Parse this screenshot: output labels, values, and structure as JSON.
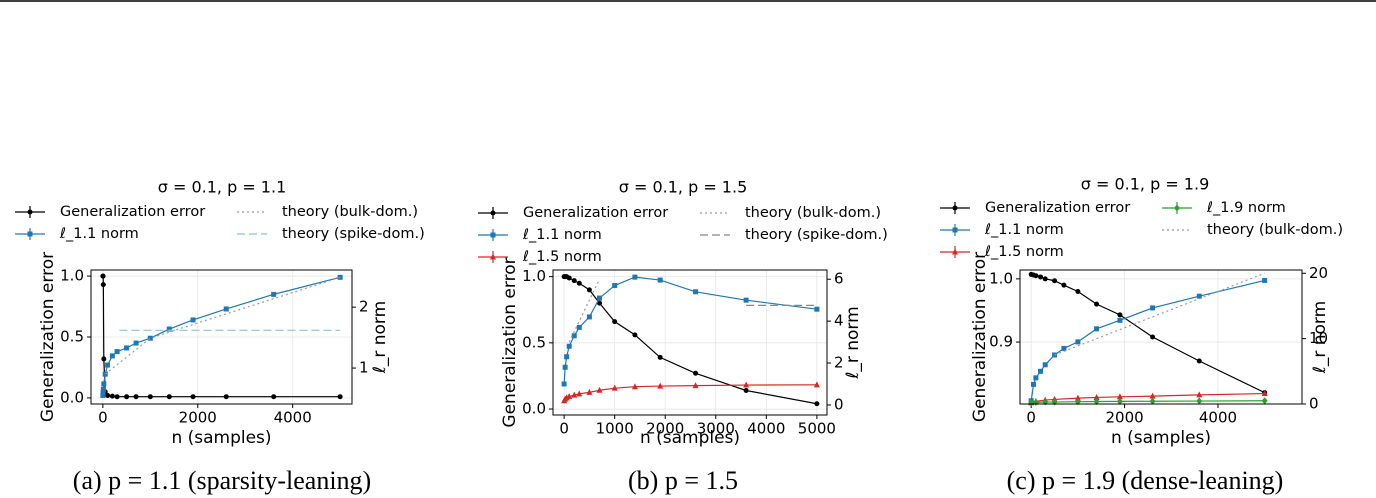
{
  "chart_data": [
    {
      "type": "line",
      "title": "σ = 0.1, p = 1.1",
      "caption": "(a) p = 1.1 (sparsity-leaning)",
      "xlabel": "n (samples)",
      "ylabel": "Generalization error",
      "y2label": "ℓ_r norm",
      "grid": true,
      "xlim": [
        -250,
        5250
      ],
      "xticks": [
        0,
        2000,
        4000
      ],
      "ylim": [
        -0.05,
        1.05
      ],
      "yticks": [
        {
          "value": 0,
          "label": "0.0"
        },
        0.5,
        {
          "value": 1,
          "label": "1.0"
        }
      ],
      "y2lim": [
        0.41,
        2.61
      ],
      "y2ticks": [
        1,
        2
      ],
      "series": [
        {
          "name": "Generalization error",
          "color": "#000000",
          "marker": "circle",
          "linestyle": "solid",
          "x": [
            0,
            5,
            10,
            20,
            50,
            100,
            200,
            300,
            500,
            700,
            1000,
            1400,
            1900,
            2600,
            3600,
            5000
          ],
          "values": [
            1.0,
            1.0,
            0.93,
            0.32,
            0.05,
            0.02,
            0.015,
            0.01,
            0.01,
            0.01,
            0.01,
            0.01,
            0.01,
            0.01,
            0.01,
            0.01
          ]
        },
        {
          "name": "ℓ_1.1 norm",
          "color": "#1f77b4",
          "marker": "square",
          "linestyle": "solid",
          "axis": "y2",
          "x": [
            0,
            5,
            10,
            20,
            50,
            100,
            200,
            300,
            500,
            700,
            1000,
            1400,
            1900,
            2600,
            3600,
            5000
          ],
          "values": [
            0.55,
            0.6,
            0.65,
            0.74,
            0.9,
            1.05,
            1.2,
            1.27,
            1.33,
            1.41,
            1.49,
            1.64,
            1.79,
            1.97,
            2.21,
            2.49
          ]
        },
        {
          "name": "theory (bulk-dom.)",
          "color": "#999999",
          "marker": "none",
          "linestyle": "dotted",
          "axis": "y2",
          "x": [
            50,
            1000,
            5000
          ],
          "values": [
            0.9,
            1.49,
            2.49
          ]
        },
        {
          "name": "theory (spike-dom.)",
          "color": "#8ec1e3",
          "marker": "none",
          "linestyle": "dashed",
          "axis": "y2",
          "x": [
            350,
            5000
          ],
          "values": [
            1.62,
            1.62
          ]
        }
      ]
    },
    {
      "type": "line",
      "title": "σ = 0.1, p = 1.5",
      "caption": "(b) p = 1.5",
      "xlabel": "n (samples)",
      "ylabel": "Generalization error",
      "y2label": "ℓ_r norm",
      "grid": true,
      "xlim": [
        -220,
        5200
      ],
      "xticks": [
        0,
        1000,
        2000,
        3000,
        4000,
        5000
      ],
      "ylim": [
        -0.045,
        1.05
      ],
      "yticks": [
        {
          "value": 0,
          "label": "0.0"
        },
        0.5,
        {
          "value": 1,
          "label": "1.0"
        }
      ],
      "y2lim": [
        -0.48,
        6.44
      ],
      "y2ticks": [
        0,
        2,
        4,
        6
      ],
      "series": [
        {
          "name": "Generalization error",
          "color": "#000000",
          "marker": "circle",
          "linestyle": "solid",
          "x": [
            0,
            20,
            50,
            100,
            200,
            300,
            500,
            700,
            1000,
            1400,
            1900,
            2600,
            3600,
            5000
          ],
          "values": [
            1.0,
            1.0,
            1.0,
            0.99,
            0.97,
            0.95,
            0.9,
            0.8,
            0.66,
            0.56,
            0.39,
            0.27,
            0.14,
            0.04
          ]
        },
        {
          "name": "ℓ_1.1 norm",
          "color": "#1f77b4",
          "marker": "square",
          "linestyle": "solid",
          "axis": "y2",
          "x": [
            0,
            20,
            50,
            100,
            200,
            300,
            500,
            700,
            1000,
            1400,
            1900,
            2600,
            3600,
            5000
          ],
          "values": [
            1.0,
            1.8,
            2.3,
            2.8,
            3.3,
            3.7,
            4.2,
            5.1,
            5.7,
            6.1,
            5.96,
            5.4,
            5.0,
            4.57
          ]
        },
        {
          "name": "ℓ_1.5 norm",
          "color": "#d62728",
          "marker": "triangle",
          "linestyle": "solid",
          "axis": "y2",
          "x": [
            0,
            20,
            50,
            100,
            200,
            300,
            500,
            700,
            1000,
            1400,
            1900,
            2600,
            3600,
            5000
          ],
          "values": [
            0.2,
            0.28,
            0.34,
            0.4,
            0.47,
            0.53,
            0.6,
            0.7,
            0.8,
            0.87,
            0.9,
            0.92,
            0.95,
            0.96
          ]
        },
        {
          "name": "theory (bulk-dom.)",
          "color": "#999999",
          "marker": "none",
          "linestyle": "dotted",
          "axis": "y2",
          "x": [
            100,
            700
          ],
          "values": [
            3.0,
            6.0
          ]
        },
        {
          "name": "theory (spike-dom.)",
          "color": "#888888",
          "marker": "none",
          "linestyle": "dashed",
          "axis": "y2",
          "x": [
            3600,
            5000
          ],
          "values": [
            4.75,
            4.75
          ]
        }
      ]
    },
    {
      "type": "line",
      "title": "σ = 0.1, p = 1.9",
      "caption": "(c) p = 1.9 (dense-leaning)",
      "xlabel": "n (samples)",
      "ylabel": "Generalization error",
      "y2label": "ℓ_r norm",
      "grid": true,
      "xlim": [
        -240,
        5800
      ],
      "xticks": [
        0,
        2000,
        4000
      ],
      "ylim": [
        0.802,
        1.014
      ],
      "yticks": [
        0.9,
        {
          "value": 1,
          "label": "1.0"
        }
      ],
      "y2lim": [
        0,
        20.5
      ],
      "y2ticks": [
        0,
        10,
        20
      ],
      "series": [
        {
          "name": "Generalization error",
          "color": "#000000",
          "marker": "circle",
          "linestyle": "solid",
          "x": [
            0,
            50,
            100,
            200,
            300,
            500,
            700,
            1000,
            1400,
            1900,
            2600,
            3600,
            5000
          ],
          "values": [
            1.007,
            1.006,
            1.005,
            1.003,
            1.0,
            0.997,
            0.99,
            0.98,
            0.96,
            0.943,
            0.908,
            0.87,
            0.82
          ]
        },
        {
          "name": "ℓ_1.1 norm",
          "color": "#1f77b4",
          "marker": "square",
          "linestyle": "solid",
          "axis": "y2",
          "x": [
            0,
            50,
            100,
            200,
            300,
            500,
            700,
            1000,
            1400,
            1900,
            2600,
            3600,
            5000
          ],
          "values": [
            0.5,
            3,
            4,
            5,
            6,
            7.5,
            8.5,
            9.5,
            11.5,
            12.8,
            14.7,
            16.5,
            18.9
          ]
        },
        {
          "name": "ℓ_1.5 norm",
          "color": "#d62728",
          "marker": "triangle",
          "linestyle": "solid",
          "axis": "y2",
          "x": [
            0,
            100,
            300,
            500,
            1000,
            1400,
            1900,
            2600,
            3600,
            5000
          ],
          "values": [
            0.2,
            0.4,
            0.6,
            0.7,
            0.9,
            1.0,
            1.1,
            1.2,
            1.4,
            1.6
          ]
        },
        {
          "name": "ℓ_1.9 norm",
          "color": "#2ca02c",
          "marker": "diamond",
          "linestyle": "solid",
          "axis": "y2",
          "x": [
            0,
            100,
            300,
            500,
            1000,
            1400,
            1900,
            2600,
            3600,
            5000
          ],
          "values": [
            0.2,
            0.25,
            0.3,
            0.3,
            0.35,
            0.38,
            0.4,
            0.42,
            0.45,
            0.5
          ]
        },
        {
          "name": "theory (bulk-dom.)",
          "color": "#999999",
          "marker": "none",
          "linestyle": "dotted",
          "axis": "y2",
          "x": [
            500,
            5000
          ],
          "values": [
            7.5,
            20
          ]
        }
      ]
    }
  ]
}
